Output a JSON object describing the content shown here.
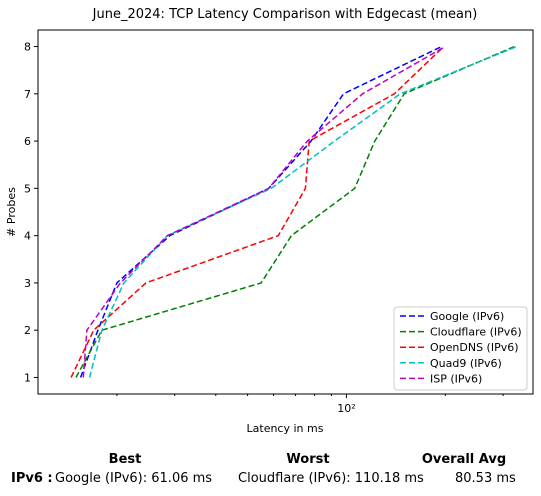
{
  "chart_data": {
    "type": "line",
    "title": "June_2024: TCP Latency Comparison with Edgecast (mean)",
    "xlabel": "Latency in ms",
    "ylabel": "# Probes",
    "x_scale": "log",
    "xlim": [
      11.5,
      370
    ],
    "ylim": [
      0.65,
      8.35
    ],
    "x_ticks": [
      {
        "value": 100,
        "label": "10²"
      }
    ],
    "y_ticks": [
      1,
      2,
      3,
      4,
      5,
      6,
      7,
      8
    ],
    "grid": false,
    "legend_position": "lower right",
    "line_style": "dashed",
    "series": [
      {
        "name": "Google (IPv6)",
        "color": "#0000ff",
        "points": [
          [
            15.5,
            1
          ],
          [
            17.5,
            2
          ],
          [
            20,
            3
          ],
          [
            29,
            4
          ],
          [
            58,
            5
          ],
          [
            78,
            6
          ],
          [
            98,
            7
          ],
          [
            195,
            8
          ]
        ]
      },
      {
        "name": "Cloudflare (IPv6)",
        "color": "#008000",
        "points": [
          [
            15,
            1
          ],
          [
            18,
            2
          ],
          [
            55,
            3
          ],
          [
            68,
            4
          ],
          [
            106,
            5
          ],
          [
            122,
            6
          ],
          [
            150,
            7
          ],
          [
            325,
            8
          ]
        ]
      },
      {
        "name": "OpenDNS (IPv6)",
        "color": "#ff0000",
        "points": [
          [
            14.5,
            1
          ],
          [
            17,
            2
          ],
          [
            24.5,
            3
          ],
          [
            62,
            4
          ],
          [
            75,
            5
          ],
          [
            77,
            6
          ],
          [
            140,
            7
          ],
          [
            198,
            8
          ]
        ]
      },
      {
        "name": "Quad9 (IPv6)",
        "color": "#00bfbf",
        "points": [
          [
            16.5,
            1
          ],
          [
            18,
            2
          ],
          [
            21,
            3
          ],
          [
            28.5,
            4
          ],
          [
            59,
            5
          ],
          [
            92,
            6
          ],
          [
            146,
            7
          ],
          [
            330,
            8
          ]
        ]
      },
      {
        "name": "ISP (IPv6)",
        "color": "#bf00bf",
        "points": [
          [
            15.8,
            1
          ],
          [
            16.2,
            2
          ],
          [
            20.5,
            3
          ],
          [
            28.5,
            4
          ],
          [
            58,
            5
          ],
          [
            76,
            6
          ],
          [
            112,
            7
          ],
          [
            200,
            8
          ]
        ]
      }
    ]
  },
  "summary": {
    "headers": {
      "best": "Best",
      "worst": "Worst",
      "avg": "Overall Avg"
    },
    "row_label": "IPv6 :",
    "best": "Google (IPv6): 61.06 ms",
    "worst": "Cloudflare (IPv6): 110.18 ms",
    "avg": "80.53 ms"
  }
}
